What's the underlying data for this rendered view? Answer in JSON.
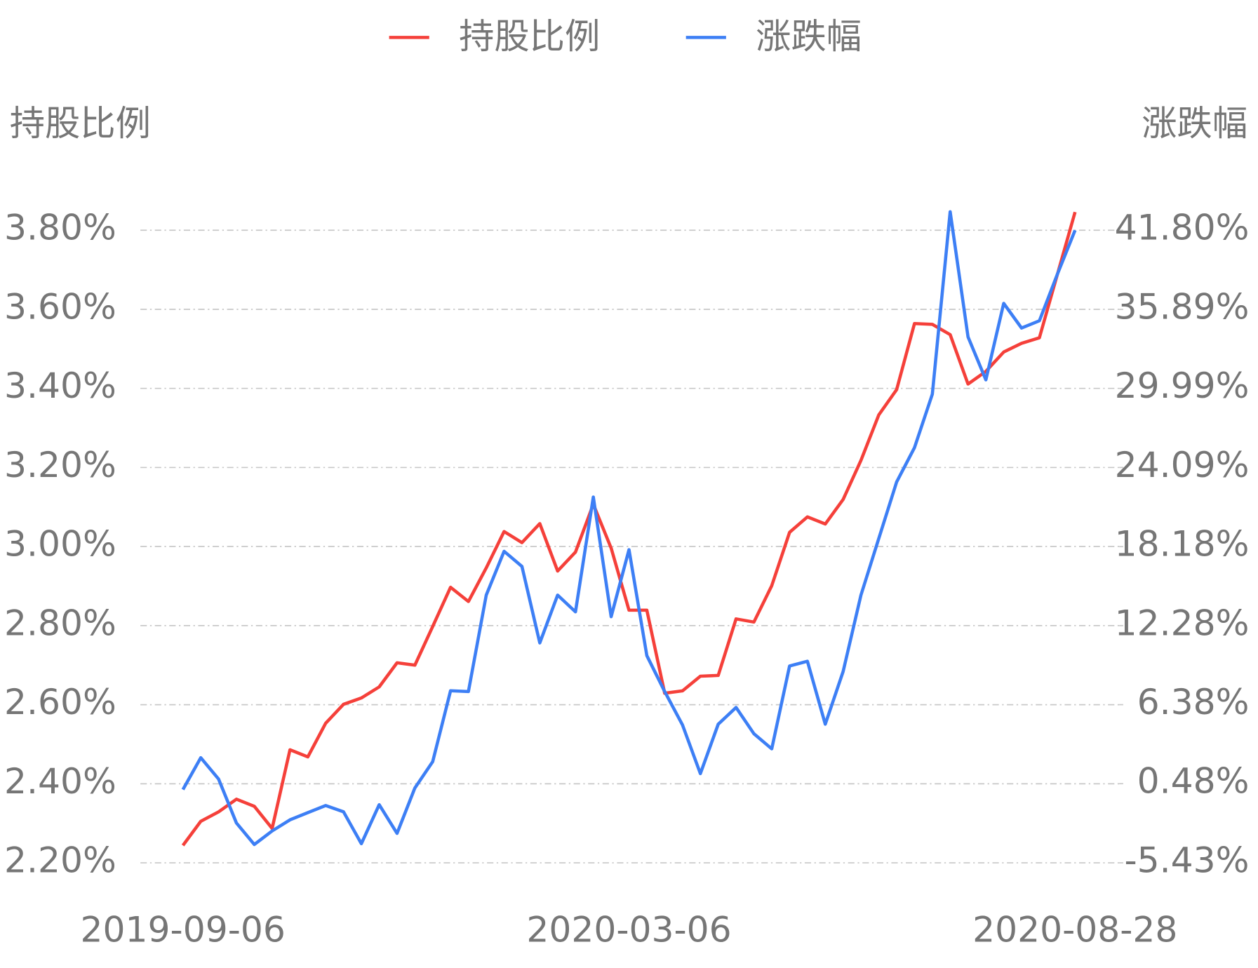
{
  "chart_data": {
    "type": "line",
    "y_label": "持股比例",
    "y2_label": "涨跌幅",
    "categories": [
      "2019-09-06",
      null,
      null,
      null,
      null,
      null,
      null,
      null,
      null,
      null,
      null,
      null,
      null,
      null,
      null,
      null,
      null,
      null,
      null,
      null,
      null,
      null,
      null,
      null,
      null,
      "2020-03-06",
      null,
      null,
      null,
      null,
      null,
      null,
      null,
      null,
      null,
      null,
      null,
      null,
      null,
      null,
      null,
      null,
      null,
      null,
      null,
      null,
      null,
      null,
      null,
      null,
      "2020-08-28"
    ],
    "series": [
      {
        "name": "持股比例",
        "color": "#f5403a",
        "axis": "y",
        "values": [
          2.244,
          2.305,
          2.329,
          2.361,
          2.343,
          2.287,
          2.486,
          2.468,
          2.553,
          2.601,
          2.617,
          2.645,
          2.706,
          2.7,
          2.798,
          2.897,
          2.861,
          2.946,
          3.038,
          3.01,
          3.058,
          2.938,
          2.986,
          3.107,
          2.996,
          2.839,
          2.839,
          2.629,
          2.635,
          2.672,
          2.674,
          2.817,
          2.809,
          2.901,
          3.036,
          3.075,
          3.057,
          3.119,
          3.218,
          3.333,
          3.397,
          3.564,
          3.562,
          3.536,
          3.411,
          3.443,
          3.492,
          3.514,
          3.528,
          3.687,
          3.846
        ]
      },
      {
        "name": "涨跌幅",
        "color": "#3d7ff5",
        "axis": "y2",
        "values": [
          0.04,
          2.42,
          0.82,
          -2.46,
          -4.06,
          -3.05,
          -2.22,
          -1.68,
          -1.15,
          -1.62,
          -4.0,
          -1.09,
          -3.23,
          0.16,
          2.13,
          7.42,
          7.36,
          14.56,
          17.83,
          16.7,
          10.99,
          14.56,
          13.31,
          21.88,
          12.95,
          17.95,
          10.04,
          7.36,
          4.86,
          1.23,
          4.92,
          6.17,
          4.21,
          3.08,
          9.27,
          9.62,
          4.92,
          8.85,
          14.56,
          18.79,
          23.01,
          25.57,
          29.56,
          43.18,
          33.84,
          30.63,
          36.34,
          34.5,
          35.04,
          38.49,
          41.8
        ]
      }
    ],
    "ylim": [
      2.2,
      3.8
    ],
    "yticks": [
      {
        "value": 2.2,
        "label": "2.20%"
      },
      {
        "value": 2.4,
        "label": "2.40%"
      },
      {
        "value": 2.6,
        "label": "2.60%"
      },
      {
        "value": 2.8,
        "label": "2.80%"
      },
      {
        "value": 3.0,
        "label": "3.00%"
      },
      {
        "value": 3.2,
        "label": "3.20%"
      },
      {
        "value": 3.4,
        "label": "3.40%"
      },
      {
        "value": 3.6,
        "label": "3.60%"
      },
      {
        "value": 3.8,
        "label": "3.80%"
      }
    ],
    "y2lim": [
      -5.43,
      41.8
    ],
    "y2ticks": [
      {
        "value": -5.43,
        "label": "-5.43%"
      },
      {
        "value": 0.48,
        "label": "0.48%"
      },
      {
        "value": 6.38,
        "label": "6.38%"
      },
      {
        "value": 12.28,
        "label": "12.28%"
      },
      {
        "value": 18.18,
        "label": "18.18%"
      },
      {
        "value": 24.09,
        "label": "24.09%"
      },
      {
        "value": 29.99,
        "label": "29.99%"
      },
      {
        "value": 35.89,
        "label": "35.89%"
      },
      {
        "value": 41.8,
        "label": "41.80%"
      }
    ],
    "grid": true,
    "legend": "top"
  }
}
